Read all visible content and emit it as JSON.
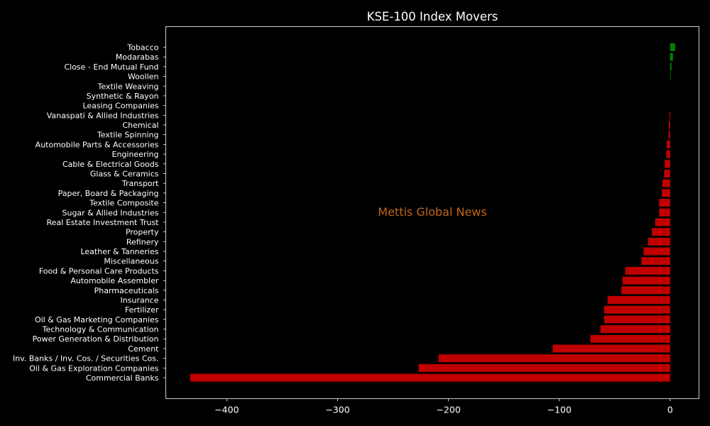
{
  "chart_data": {
    "type": "bar",
    "orientation": "horizontal",
    "title": "KSE-100 Index Movers",
    "watermark": "Mettis Global News",
    "xlabel": "",
    "ylabel": "",
    "xlim": [
      -455,
      26
    ],
    "xticks": [
      -400,
      -300,
      -200,
      -100,
      0
    ],
    "xtick_labels": [
      "−400",
      "−300",
      "−200",
      "−100",
      "0"
    ],
    "grid": false,
    "colors": {
      "positive": "#008000",
      "negative": "#c00000",
      "background": "#000000",
      "text": "#ffffff",
      "watermark": "#c0661a"
    },
    "categories": [
      "Tobacco",
      "Modarabas",
      "Close - End Mutual Fund",
      "Woollen",
      "Textile Weaving",
      "Synthetic & Rayon",
      "Leasing Companies",
      "Vanaspati & Allied Industries",
      "Chemical",
      "Textile Spinning",
      "Automobile Parts & Accessories",
      "Engineering",
      "Cable & Electrical Goods",
      "Glass & Ceramics",
      "Transport",
      "Paper, Board & Packaging",
      "Textile Composite",
      "Sugar & Allied Industries",
      "Real Estate Investment Trust",
      "Property",
      "Refinery",
      "Leather & Tanneries",
      "Miscellaneous",
      "Food & Personal Care Products",
      "Automobile Assembler",
      "Pharmaceuticals",
      "Insurance",
      "Fertilizer",
      "Oil & Gas Marketing Companies",
      "Technology & Communication",
      "Power Generation & Distribution",
      "Cement",
      "Inv. Banks / Inv. Cos. / Securities Cos.",
      "Oil & Gas Exploration Companies",
      "Commercial Banks"
    ],
    "values": [
      4.5,
      2.5,
      1.2,
      0.5,
      0,
      0,
      0,
      -0.8,
      -1.2,
      -1.5,
      -3,
      -3.5,
      -5,
      -5.5,
      -7,
      -7.5,
      -10,
      -10,
      -13.5,
      -16.5,
      -20,
      -24,
      -26,
      -40.5,
      -43,
      -44,
      -56.5,
      -59.5,
      -59.5,
      -63,
      -72,
      -106,
      -209,
      -227,
      -433
    ]
  }
}
